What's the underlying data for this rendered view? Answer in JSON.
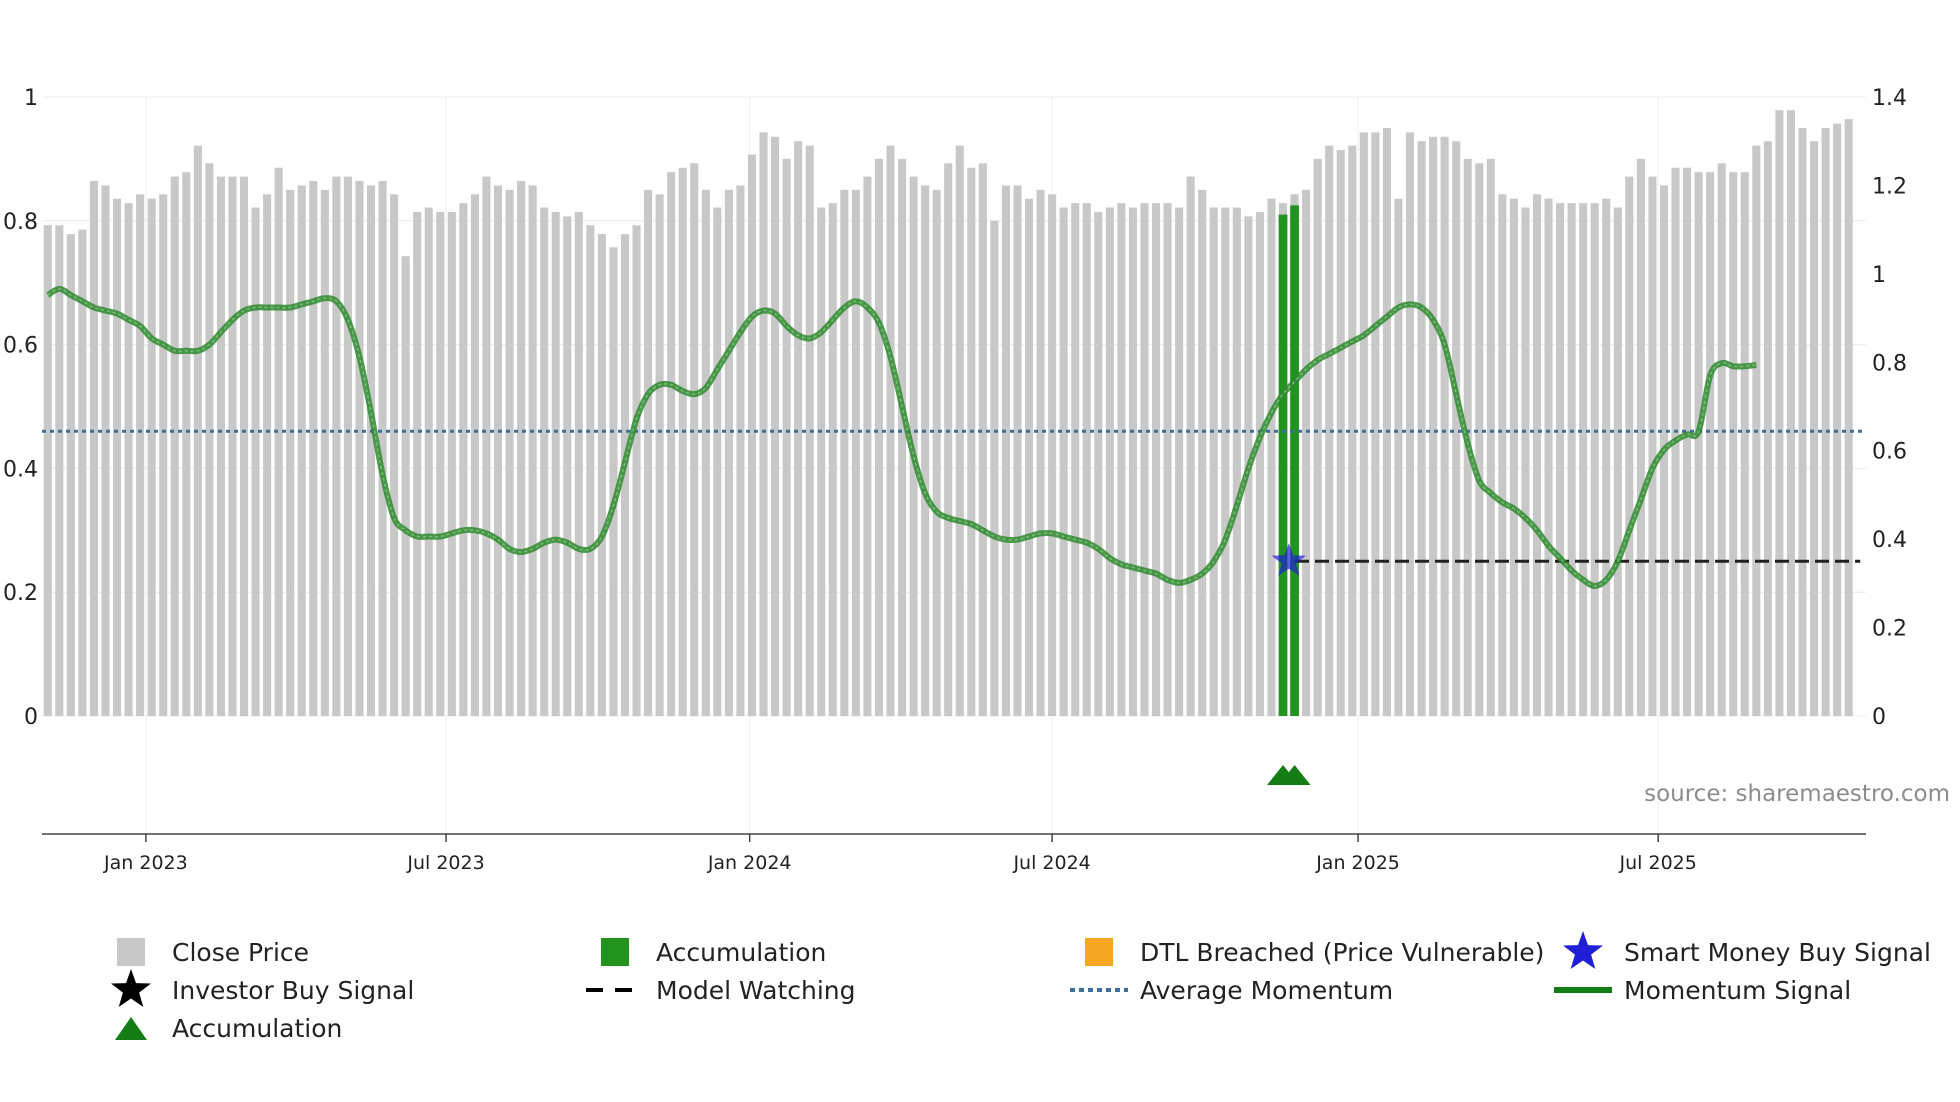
{
  "chart_data": {
    "type": "bar",
    "title": "",
    "source": "source: sharemaestro.com",
    "left_axis": {
      "ylim": [
        0,
        1
      ],
      "ticks": [
        "0",
        "0.2",
        "0.4",
        "0.6",
        "0.8",
        "1"
      ]
    },
    "right_axis": {
      "ylim": [
        0,
        1.4
      ],
      "ticks": [
        "0",
        "0.2",
        "0.4",
        "0.6",
        "0.8",
        "1",
        "1.2",
        "1.4"
      ]
    },
    "x_axis": {
      "ticks": [
        {
          "label": "Jan 2023",
          "week": 9.5
        },
        {
          "label": "Jul 2023",
          "week": 35.5
        },
        {
          "label": "Jan 2024",
          "week": 61.8
        },
        {
          "label": "Jul 2024",
          "week": 88.0
        },
        {
          "label": "Jan 2025",
          "week": 114.5
        },
        {
          "label": "Jul 2025",
          "week": 140.5
        }
      ],
      "week_range": [
        0.5,
        158.5
      ]
    },
    "colors": {
      "close": "#c8c8c8",
      "accumulation": "#22931f",
      "momentum": "#2e8b2e",
      "average": "#3d6f99",
      "watch": "#222222",
      "star": "#1f1fd6",
      "dtl": "#f5a623"
    },
    "series": [
      {
        "name": "Close Price",
        "axis": "right",
        "values": [
          1.11,
          1.11,
          1.09,
          1.1,
          1.21,
          1.2,
          1.17,
          1.16,
          1.18,
          1.17,
          1.18,
          1.22,
          1.23,
          1.29,
          1.25,
          1.22,
          1.22,
          1.22,
          1.15,
          1.18,
          1.24,
          1.19,
          1.2,
          1.21,
          1.19,
          1.22,
          1.22,
          1.21,
          1.2,
          1.21,
          1.18,
          1.04,
          1.14,
          1.15,
          1.14,
          1.14,
          1.16,
          1.18,
          1.22,
          1.2,
          1.19,
          1.21,
          1.2,
          1.15,
          1.14,
          1.13,
          1.14,
          1.11,
          1.09,
          1.06,
          1.09,
          1.11,
          1.19,
          1.18,
          1.23,
          1.24,
          1.25,
          1.19,
          1.15,
          1.19,
          1.2,
          1.27,
          1.32,
          1.31,
          1.26,
          1.3,
          1.29,
          1.15,
          1.16,
          1.19,
          1.19,
          1.22,
          1.26,
          1.29,
          1.26,
          1.22,
          1.2,
          1.19,
          1.25,
          1.29,
          1.24,
          1.25,
          1.12,
          1.2,
          1.2,
          1.17,
          1.19,
          1.18,
          1.15,
          1.16,
          1.16,
          1.14,
          1.15,
          1.16,
          1.15,
          1.16,
          1.16,
          1.16,
          1.15,
          1.22,
          1.19,
          1.15,
          1.15,
          1.15,
          1.13,
          1.14,
          1.17,
          1.16,
          1.18,
          1.19,
          1.26,
          1.29,
          1.28,
          1.29,
          1.32,
          1.32,
          1.33,
          1.17,
          1.32,
          1.3,
          1.31,
          1.31,
          1.3,
          1.26,
          1.25,
          1.26,
          1.18,
          1.17,
          1.15,
          1.18,
          1.17,
          1.16,
          1.16,
          1.16,
          1.16,
          1.17,
          1.15,
          1.22,
          1.26,
          1.22,
          1.2,
          1.24,
          1.24,
          1.23,
          1.23,
          1.25,
          1.23,
          1.23,
          1.29,
          1.3,
          1.37,
          1.37,
          1.33,
          1.3,
          1.33,
          1.34,
          1.35
        ]
      },
      {
        "name": "Momentum Signal",
        "axis": "left",
        "values": [
          0.68,
          0.69,
          0.68,
          0.67,
          0.66,
          0.655,
          0.65,
          0.64,
          0.63,
          0.61,
          0.6,
          0.59,
          0.59,
          0.59,
          0.6,
          0.62,
          0.64,
          0.655,
          0.66,
          0.66,
          0.66,
          0.66,
          0.665,
          0.67,
          0.675,
          0.67,
          0.64,
          0.58,
          0.49,
          0.39,
          0.32,
          0.3,
          0.29,
          0.29,
          0.29,
          0.295,
          0.3,
          0.3,
          0.295,
          0.285,
          0.27,
          0.265,
          0.27,
          0.28,
          0.285,
          0.28,
          0.27,
          0.27,
          0.29,
          0.34,
          0.41,
          0.48,
          0.52,
          0.535,
          0.535,
          0.525,
          0.52,
          0.53,
          0.56,
          0.59,
          0.62,
          0.645,
          0.655,
          0.65,
          0.63,
          0.615,
          0.61,
          0.62,
          0.64,
          0.66,
          0.67,
          0.66,
          0.635,
          0.58,
          0.5,
          0.42,
          0.36,
          0.33,
          0.32,
          0.315,
          0.31,
          0.3,
          0.29,
          0.285,
          0.285,
          0.29,
          0.295,
          0.295,
          0.29,
          0.285,
          0.28,
          0.27,
          0.255,
          0.245,
          0.24,
          0.235,
          0.23,
          0.22,
          0.215,
          0.22,
          0.23,
          0.25,
          0.285,
          0.34,
          0.4,
          0.45,
          0.49,
          0.52,
          0.54,
          0.56,
          0.575,
          0.585,
          0.595,
          0.605,
          0.615,
          0.63,
          0.645,
          0.66,
          0.665,
          0.66,
          0.64,
          0.6,
          0.52,
          0.44,
          0.38,
          0.36,
          0.345,
          0.335,
          0.32,
          0.3,
          0.275,
          0.255,
          0.235,
          0.22,
          0.21,
          0.22,
          0.25,
          0.3,
          0.35,
          0.4,
          0.43,
          0.445,
          0.455,
          0.46,
          0.55,
          0.57,
          0.565,
          0.565,
          0.567
        ]
      },
      {
        "name": "Average Momentum",
        "axis": "left",
        "value": 0.46
      },
      {
        "name": "Model Watching",
        "axis": "left",
        "value": 0.25,
        "from_week": 108,
        "to_week": 158
      }
    ],
    "accumulation_bars": [
      {
        "week": 108,
        "value": 0.81
      },
      {
        "week": 109,
        "value": 0.825
      }
    ],
    "accumulation_markers": [
      {
        "week": 108
      },
      {
        "week": 109
      }
    ],
    "smart_money_buy": [
      {
        "week": 108.5,
        "value": 0.25
      }
    ],
    "legend": [
      {
        "label": "Close Price",
        "symbol": "gray-square"
      },
      {
        "label": "Accumulation",
        "symbol": "green-square"
      },
      {
        "label": "DTL Breached (Price Vulnerable)",
        "symbol": "orange-square"
      },
      {
        "label": "Smart Money Buy Signal",
        "symbol": "blue-star"
      },
      {
        "label": "Investor Buy Signal",
        "symbol": "black-star"
      },
      {
        "label": "Model Watching",
        "symbol": "black-dash"
      },
      {
        "label": "Average Momentum",
        "symbol": "blue-dot-line"
      },
      {
        "label": "Momentum Signal",
        "symbol": "green-line"
      },
      {
        "label": "Accumulation",
        "symbol": "green-triangle"
      }
    ]
  }
}
